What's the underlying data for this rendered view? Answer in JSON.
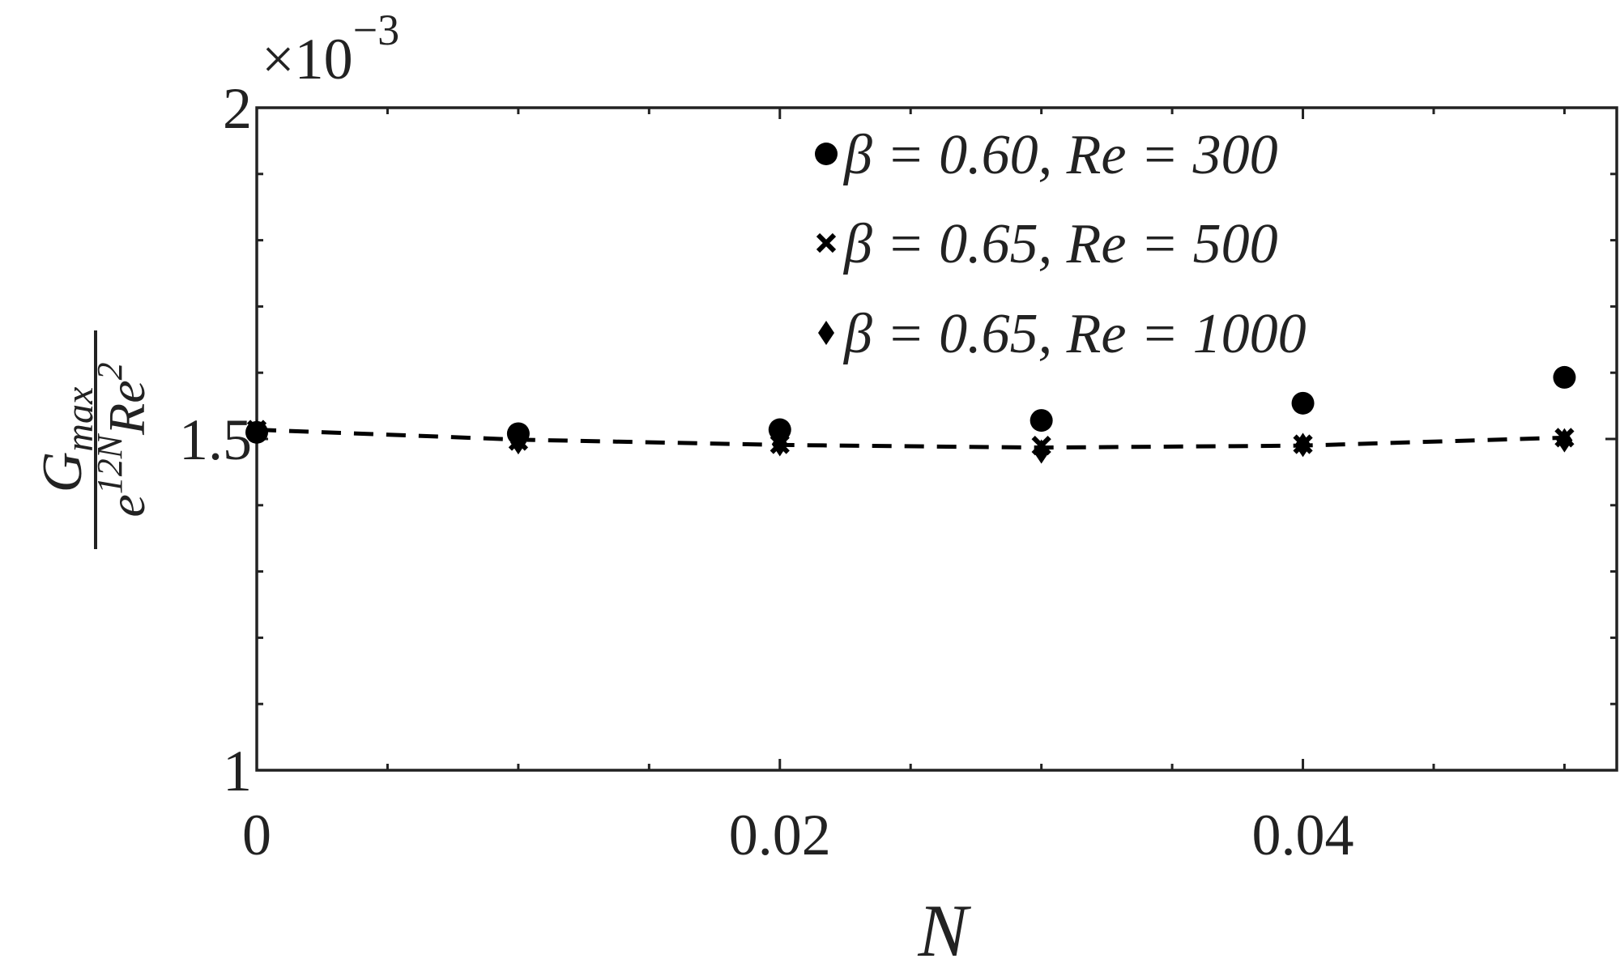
{
  "chart_data": {
    "type": "scatter",
    "xlabel": "N",
    "ylabel": {
      "numerator": "G",
      "numerator_sub": "max",
      "denominator_base": "e",
      "denominator_exp": "12N",
      "denominator_rest": "Re",
      "denominator_rest_exp": "2"
    },
    "y_multiplier": {
      "base": "×10",
      "exponent": "−3"
    },
    "xlim": [
      0,
      0.052
    ],
    "xticks": [
      0,
      0.02,
      0.04
    ],
    "xminorticks": [
      0.005,
      0.01,
      0.015,
      0.025,
      0.03,
      0.035,
      0.045,
      0.05
    ],
    "ylim": [
      1,
      2
    ],
    "yticks": [
      1,
      1.5,
      2
    ],
    "yminorticks": [
      1.1,
      1.2,
      1.3,
      1.4,
      1.6,
      1.7,
      1.8,
      1.9
    ],
    "x": [
      0,
      0.01,
      0.02,
      0.03,
      0.04,
      0.05
    ],
    "series": [
      {
        "name": "β = 0.60, Re = 300",
        "color": "#000000",
        "marker": "circle",
        "values": [
          1.51,
          1.508,
          1.514,
          1.528,
          1.554,
          1.593
        ]
      },
      {
        "name": "β = 0.65, Re = 500",
        "color": "#000000",
        "marker": "cross",
        "values": [
          1.514,
          1.497,
          1.492,
          1.49,
          1.492,
          1.502
        ]
      },
      {
        "name": "β = 0.65, Re = 1000",
        "color": "#000000",
        "marker": "diamond",
        "values": [
          1.511,
          1.495,
          1.492,
          1.481,
          1.491,
          1.498
        ]
      }
    ],
    "fit": {
      "color": "#000000",
      "style": "dashed",
      "values": [
        1.514,
        1.499,
        1.491,
        1.487,
        1.49,
        1.502
      ]
    },
    "legend": "upper right"
  }
}
